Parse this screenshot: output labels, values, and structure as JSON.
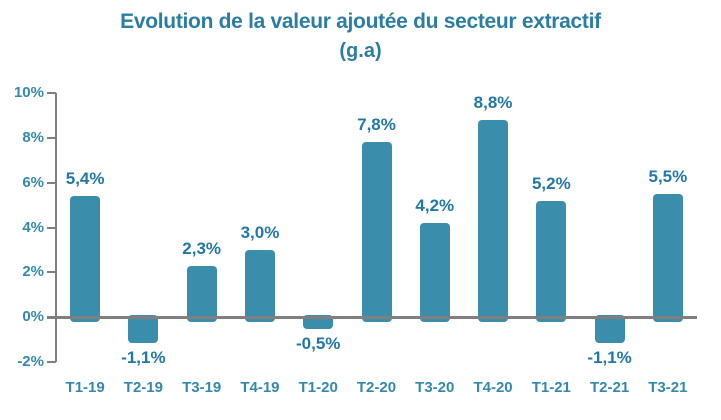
{
  "chart_data": {
    "type": "bar",
    "title": "Evolution de la valeur ajoutée du secteur extractif",
    "subtitle": "(g.a)",
    "categories": [
      "T1-19",
      "T2-19",
      "T3-19",
      "T4-19",
      "T1-20",
      "T2-20",
      "T3-20",
      "T4-20",
      "T1-21",
      "T2-21",
      "T3-21"
    ],
    "values": [
      5.4,
      -1.1,
      2.3,
      3.0,
      -0.5,
      7.8,
      4.2,
      8.8,
      5.2,
      -1.1,
      5.5
    ],
    "value_labels": [
      "5,4%",
      "-1,1%",
      "2,3%",
      "3,0%",
      "-0,5%",
      "7,8%",
      "4,2%",
      "8,8%",
      "5,2%",
      "-1,1%",
      "5,5%"
    ],
    "y_tick_values": [
      10,
      8,
      6,
      4,
      2,
      0,
      -2
    ],
    "y_tick_labels": [
      "10%",
      "8%",
      "6%",
      "4%",
      "2%",
      "0%",
      "-2%"
    ],
    "ylim": [
      -2,
      10
    ],
    "xlabel": "",
    "ylabel": "",
    "grid": false,
    "legend": null
  },
  "colors": {
    "bar": "#3B8EAB",
    "title": "#2B7DA3",
    "data_label": "#2178A6",
    "tick_label": "#3389AC",
    "axis": "#7F7F7F"
  }
}
